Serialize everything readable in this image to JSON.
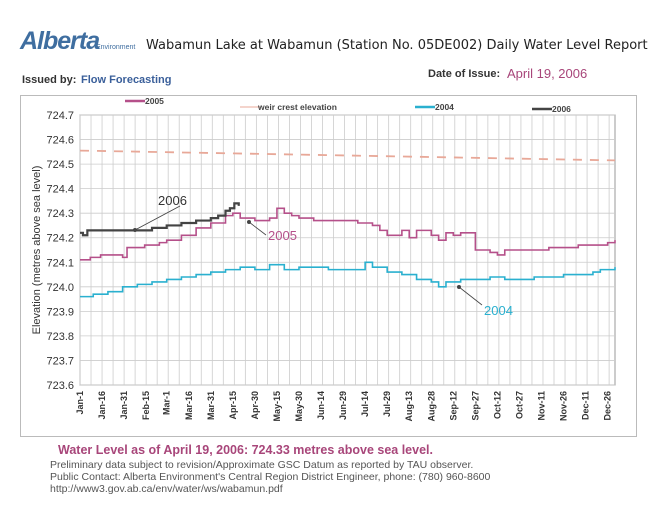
{
  "header": {
    "logo": "Alberta",
    "logo_sub": "Environment",
    "title": "Wabamun Lake at Wabamun (Station No. 05DE002) Daily Water Level Report",
    "issued_by_label": "Issued by:",
    "issued_by_value": "Flow Forecasting",
    "date_label": "Date of Issue:",
    "date_value": "April 19, 2006"
  },
  "footer": {
    "headline": "Water Level as of April 19, 2006:  724.33 metres above sea level.",
    "line1": "Preliminary data subject to revision/Approximate GSC Datum as reported by TAU observer.",
    "line2": "Public Contact: Alberta Environment's Central Region District Engineer, phone: (780) 960-8600",
    "line3": "http://www3.gov.ab.ca/env/water/ws/wabamun.pdf"
  },
  "colors": {
    "s2005": "#b5508a",
    "weir": "#e8a898",
    "s2004": "#2ab0cf",
    "s2006": "#444444",
    "accent": "#a8467a"
  },
  "chart_data": {
    "type": "line",
    "title": "Wabamun Lake at Wabamun (Station No. 05DE002) Daily Water Level Report",
    "xlabel": "",
    "ylabel": "Elevation (metres above sea level)",
    "ylim": [
      723.6,
      724.7
    ],
    "xlim_day_of_year": [
      1,
      365
    ],
    "grid": true,
    "legend_position": "top",
    "y_ticks": [
      "723.6",
      "723.7",
      "723.8",
      "723.9",
      "724.0",
      "724.1",
      "724.2",
      "724.3",
      "724.4",
      "724.5",
      "724.6",
      "724.7"
    ],
    "x_ticks": [
      {
        "label": "Jan-1",
        "day": 1
      },
      {
        "label": "Jan-16",
        "day": 16
      },
      {
        "label": "Jan-31",
        "day": 31
      },
      {
        "label": "Feb-15",
        "day": 46
      },
      {
        "label": "Mar-1",
        "day": 60
      },
      {
        "label": "Mar-16",
        "day": 75
      },
      {
        "label": "Mar-31",
        "day": 90
      },
      {
        "label": "Apr-15",
        "day": 105
      },
      {
        "label": "Apr-30",
        "day": 120
      },
      {
        "label": "May-15",
        "day": 135
      },
      {
        "label": "May-30",
        "day": 150
      },
      {
        "label": "Jun-14",
        "day": 165
      },
      {
        "label": "Jun-29",
        "day": 180
      },
      {
        "label": "Jul-14",
        "day": 195
      },
      {
        "label": "Jul-29",
        "day": 210
      },
      {
        "label": "Aug-13",
        "day": 225
      },
      {
        "label": "Aug-28",
        "day": 240
      },
      {
        "label": "Sep-12",
        "day": 255
      },
      {
        "label": "Sep-27",
        "day": 270
      },
      {
        "label": "Oct-12",
        "day": 285
      },
      {
        "label": "Oct-27",
        "day": 300
      },
      {
        "label": "Nov-11",
        "day": 315
      },
      {
        "label": "Nov-26",
        "day": 330
      },
      {
        "label": "Dec-11",
        "day": 345
      },
      {
        "label": "Dec-26",
        "day": 360
      }
    ],
    "series": [
      {
        "name": "2005",
        "key": "s2005",
        "dash": false,
        "x": [
          1,
          8,
          15,
          25,
          30,
          33,
          38,
          45,
          55,
          60,
          70,
          80,
          90,
          100,
          105,
          110,
          115,
          120,
          130,
          135,
          140,
          145,
          150,
          160,
          170,
          180,
          190,
          200,
          205,
          210,
          220,
          225,
          230,
          240,
          245,
          250,
          255,
          260,
          270,
          275,
          280,
          285,
          290,
          295,
          300,
          310,
          320,
          330,
          340,
          350,
          360,
          365
        ],
        "y": [
          724.11,
          724.12,
          724.13,
          724.13,
          724.12,
          724.16,
          724.16,
          724.17,
          724.18,
          724.19,
          724.21,
          724.24,
          724.26,
          724.29,
          724.3,
          724.28,
          724.28,
          724.27,
          724.28,
          724.32,
          724.3,
          724.29,
          724.28,
          724.27,
          724.27,
          724.27,
          724.26,
          724.25,
          724.23,
          724.21,
          724.23,
          724.2,
          724.23,
          724.21,
          724.19,
          724.22,
          724.21,
          724.22,
          724.15,
          724.15,
          724.14,
          724.13,
          724.15,
          724.15,
          724.15,
          724.15,
          724.16,
          724.16,
          724.17,
          724.17,
          724.18,
          724.19
        ]
      },
      {
        "name": "weir crest elevation",
        "key": "weir",
        "dash": true,
        "x": [
          1,
          365
        ],
        "y": [
          724.555,
          724.515
        ]
      },
      {
        "name": "2004",
        "key": "s2004",
        "dash": false,
        "x": [
          1,
          10,
          20,
          30,
          40,
          50,
          60,
          70,
          80,
          90,
          100,
          110,
          115,
          120,
          130,
          140,
          150,
          160,
          170,
          180,
          190,
          195,
          200,
          210,
          220,
          230,
          240,
          245,
          250,
          260,
          270,
          280,
          290,
          300,
          310,
          320,
          330,
          340,
          350,
          355,
          360,
          365
        ],
        "y": [
          723.96,
          723.97,
          723.98,
          724.0,
          724.01,
          724.02,
          724.03,
          724.04,
          724.05,
          724.06,
          724.07,
          724.08,
          724.08,
          724.07,
          724.09,
          724.07,
          724.08,
          724.08,
          724.07,
          724.07,
          724.07,
          724.1,
          724.08,
          724.06,
          724.05,
          724.03,
          724.02,
          724.0,
          724.02,
          724.03,
          724.03,
          724.04,
          724.03,
          724.03,
          724.04,
          724.04,
          724.05,
          724.05,
          724.06,
          724.07,
          724.07,
          724.08
        ]
      },
      {
        "name": "2006",
        "key": "s2006",
        "dash": false,
        "x": [
          1,
          3,
          6,
          10,
          15,
          20,
          30,
          40,
          50,
          55,
          60,
          65,
          70,
          75,
          80,
          85,
          90,
          95,
          100,
          103,
          106,
          109
        ],
        "y": [
          724.22,
          724.21,
          724.23,
          724.23,
          724.23,
          724.23,
          724.23,
          724.23,
          724.24,
          724.24,
          724.25,
          724.25,
          724.26,
          724.26,
          724.27,
          724.27,
          724.28,
          724.29,
          724.31,
          724.32,
          724.34,
          724.33
        ]
      }
    ],
    "annotations": [
      {
        "text": "2006",
        "series": "2006"
      },
      {
        "text": "2005",
        "series": "2005"
      },
      {
        "text": "2004",
        "series": "2004"
      }
    ]
  }
}
